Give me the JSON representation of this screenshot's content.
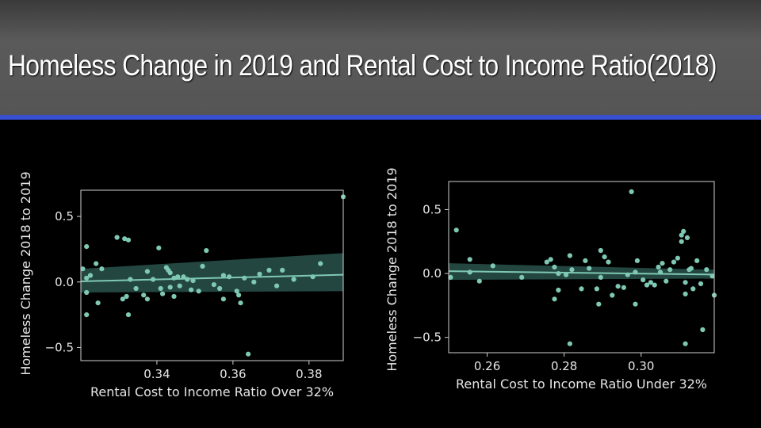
{
  "slide": {
    "title": "Homeless Change in 2019 and Rental Cost to Income Ratio(2018)"
  },
  "colors": {
    "accent_bar": "#3a4fd0",
    "points": "#7fc8b4",
    "band": "#2f5f56"
  },
  "chart_data": [
    {
      "type": "scatter",
      "title": "",
      "xlabel": "Rental Cost to Income Ratio Over 32%",
      "ylabel": "Homeless Change 2018 to 2019",
      "xlim": [
        0.32,
        0.389
      ],
      "ylim": [
        -0.6,
        0.7
      ],
      "xticks": [
        0.34,
        0.36,
        0.38
      ],
      "xtick_labels": [
        "0.34",
        "0.36",
        "0.38"
      ],
      "yticks": [
        0.5,
        0.0,
        -0.5
      ],
      "ytick_labels": [
        "0.5",
        "0.0",
        "−0.5"
      ],
      "grid": false,
      "regression": {
        "x": [
          0.32,
          0.389
        ],
        "y": [
          0.005,
          0.055
        ],
        "ci_low": [
          -0.08,
          -0.07
        ],
        "ci_high": [
          0.1,
          0.22
        ]
      },
      "points": [
        [
          0.389,
          0.65
        ],
        [
          0.3215,
          0.27
        ],
        [
          0.3205,
          0.1
        ],
        [
          0.3225,
          0.05
        ],
        [
          0.3215,
          0.03
        ],
        [
          0.3215,
          -0.08
        ],
        [
          0.3215,
          -0.25
        ],
        [
          0.324,
          0.14
        ],
        [
          0.3245,
          -0.16
        ],
        [
          0.3255,
          0.1
        ],
        [
          0.3295,
          0.34
        ],
        [
          0.3315,
          0.33
        ],
        [
          0.3325,
          0.32
        ],
        [
          0.331,
          -0.13
        ],
        [
          0.332,
          -0.11
        ],
        [
          0.3325,
          -0.25
        ],
        [
          0.333,
          0.02
        ],
        [
          0.3345,
          -0.05
        ],
        [
          0.3365,
          -0.1
        ],
        [
          0.3375,
          -0.13
        ],
        [
          0.3375,
          0.08
        ],
        [
          0.339,
          0.02
        ],
        [
          0.3405,
          0.26
        ],
        [
          0.341,
          -0.05
        ],
        [
          0.3415,
          -0.09
        ],
        [
          0.3425,
          0.11
        ],
        [
          0.343,
          0.09
        ],
        [
          0.3435,
          0.07
        ],
        [
          0.3435,
          -0.04
        ],
        [
          0.3445,
          -0.11
        ],
        [
          0.3445,
          0.03
        ],
        [
          0.3455,
          0.04
        ],
        [
          0.346,
          -0.03
        ],
        [
          0.347,
          0.04
        ],
        [
          0.348,
          0.02
        ],
        [
          0.349,
          -0.06
        ],
        [
          0.3495,
          0.01
        ],
        [
          0.351,
          -0.07
        ],
        [
          0.352,
          0.12
        ],
        [
          0.353,
          0.24
        ],
        [
          0.355,
          -0.02
        ],
        [
          0.3565,
          -0.05
        ],
        [
          0.3575,
          0.05
        ],
        [
          0.3575,
          -0.13
        ],
        [
          0.359,
          0.04
        ],
        [
          0.361,
          -0.07
        ],
        [
          0.3615,
          -0.1
        ],
        [
          0.362,
          -0.16
        ],
        [
          0.363,
          0.03
        ],
        [
          0.364,
          -0.55
        ],
        [
          0.3655,
          0.0
        ],
        [
          0.367,
          0.06
        ],
        [
          0.3695,
          0.09
        ],
        [
          0.3715,
          -0.03
        ],
        [
          0.373,
          0.09
        ],
        [
          0.376,
          0.02
        ],
        [
          0.381,
          0.04
        ],
        [
          0.383,
          0.14
        ]
      ]
    },
    {
      "type": "scatter",
      "title": "",
      "xlabel": "Rental Cost to Income Ratio Under 32%",
      "ylabel": "Homeless Change 2018 to 2019",
      "xlim": [
        0.25,
        0.319
      ],
      "ylim": [
        -0.62,
        0.72
      ],
      "xticks": [
        0.26,
        0.28,
        0.3
      ],
      "xtick_labels": [
        "0.26",
        "0.28",
        "0.30"
      ],
      "yticks": [
        0.5,
        0.0,
        -0.5
      ],
      "ytick_labels": [
        "0.5",
        "0.0",
        "−0.5"
      ],
      "grid": false,
      "regression": {
        "x": [
          0.25,
          0.319
        ],
        "y": [
          0.018,
          -0.008
        ],
        "ci_low": [
          -0.05,
          -0.04
        ],
        "ci_high": [
          0.08,
          0.03
        ]
      },
      "points": [
        [
          0.252,
          0.34
        ],
        [
          0.2505,
          -0.03
        ],
        [
          0.2555,
          0.11
        ],
        [
          0.2555,
          0.01
        ],
        [
          0.258,
          -0.06
        ],
        [
          0.2615,
          0.06
        ],
        [
          0.269,
          -0.03
        ],
        [
          0.2755,
          0.09
        ],
        [
          0.2765,
          0.11
        ],
        [
          0.2775,
          0.05
        ],
        [
          0.2785,
          0.0
        ],
        [
          0.2775,
          -0.2
        ],
        [
          0.2785,
          -0.13
        ],
        [
          0.2805,
          -0.01
        ],
        [
          0.2815,
          0.14
        ],
        [
          0.2815,
          -0.55
        ],
        [
          0.282,
          0.03
        ],
        [
          0.2845,
          -0.12
        ],
        [
          0.2855,
          0.1
        ],
        [
          0.2865,
          0.04
        ],
        [
          0.2885,
          -0.12
        ],
        [
          0.289,
          -0.24
        ],
        [
          0.2895,
          -0.03
        ],
        [
          0.2895,
          0.18
        ],
        [
          0.2905,
          0.13
        ],
        [
          0.2915,
          0.09
        ],
        [
          0.2925,
          -0.17
        ],
        [
          0.294,
          -0.1
        ],
        [
          0.2955,
          -0.11
        ],
        [
          0.2965,
          -0.01
        ],
        [
          0.2975,
          0.64
        ],
        [
          0.2985,
          0.01
        ],
        [
          0.2985,
          -0.24
        ],
        [
          0.299,
          0.1
        ],
        [
          0.3005,
          -0.05
        ],
        [
          0.3015,
          -0.09
        ],
        [
          0.3025,
          -0.07
        ],
        [
          0.3035,
          -0.09
        ],
        [
          0.3045,
          0.05
        ],
        [
          0.305,
          0.01
        ],
        [
          0.3055,
          0.08
        ],
        [
          0.3065,
          -0.06
        ],
        [
          0.3075,
          0.03
        ],
        [
          0.3085,
          0.09
        ],
        [
          0.3095,
          0.12
        ],
        [
          0.3105,
          0.25
        ],
        [
          0.3105,
          0.3
        ],
        [
          0.311,
          0.33
        ],
        [
          0.3115,
          -0.07
        ],
        [
          0.3115,
          -0.16
        ],
        [
          0.3115,
          -0.55
        ],
        [
          0.312,
          0.28
        ],
        [
          0.3125,
          0.03
        ],
        [
          0.313,
          0.04
        ],
        [
          0.3135,
          -0.12
        ],
        [
          0.3145,
          0.1
        ],
        [
          0.3155,
          -0.08
        ],
        [
          0.316,
          -0.44
        ],
        [
          0.317,
          0.03
        ],
        [
          0.3185,
          -0.02
        ],
        [
          0.319,
          -0.17
        ]
      ]
    }
  ]
}
